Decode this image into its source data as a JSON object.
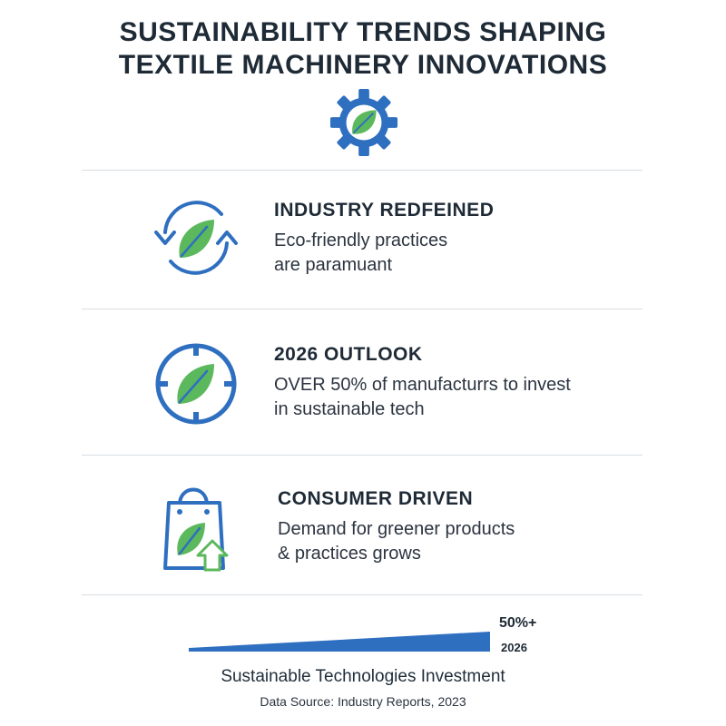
{
  "header": {
    "title_line1": "SUSTAINABILITY TRENDS SHAPING",
    "title_line2": "TEXTILE MACHINERY INNOVATIONS",
    "icon": "gear-leaf-icon"
  },
  "colors": {
    "blue": "#2f6fc0",
    "green": "#5cb85c",
    "dark_text": "#1e2a36"
  },
  "sections": [
    {
      "icon": "recycle-leaf-icon",
      "heading": "INDUSTRY REDFEINED",
      "line1": "Eco-friendly practices",
      "line2": "are paramuant"
    },
    {
      "icon": "clock-leaf-icon",
      "heading": "2026 OUTLOOK",
      "line1": "OVER 50% of manufacturrs to invest",
      "line2": "in sustainable tech"
    },
    {
      "icon": "shopping-bag-leaf-icon",
      "heading": "CONSUMER DRIVEN",
      "line1": "Demand for greener products",
      "line2": "& practices grows"
    }
  ],
  "chart_data": {
    "type": "area",
    "value_label": "50%+",
    "end_label": "2026",
    "end_value_percent": 50,
    "title": "Sustainable Technologies Investment"
  },
  "footer": {
    "source": "Data Source: Industry Reports, 2023"
  }
}
